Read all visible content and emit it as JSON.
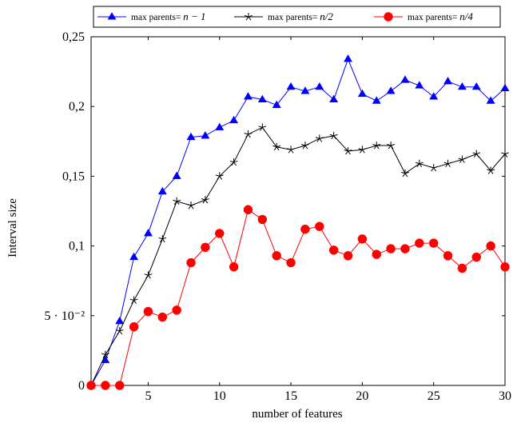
{
  "chart_data": {
    "type": "line",
    "xlabel": "number of features",
    "ylabel": "Interval size",
    "xlim": [
      1,
      30
    ],
    "ylim": [
      0,
      0.25
    ],
    "x_ticks": [
      5,
      10,
      15,
      20,
      25,
      30
    ],
    "x_tick_labels": [
      "5",
      "10",
      "15",
      "20",
      "25",
      "30"
    ],
    "y_ticks": [
      0,
      0.05,
      0.1,
      0.15,
      0.2,
      0.25
    ],
    "y_tick_labels": [
      "0",
      "5 · 10⁻²",
      "0,1",
      "0,15",
      "0,2",
      "0,25"
    ],
    "grid": false,
    "legend_position": "top-above",
    "x": [
      1,
      2,
      3,
      4,
      5,
      6,
      7,
      8,
      9,
      10,
      11,
      12,
      13,
      14,
      15,
      16,
      17,
      18,
      19,
      20,
      21,
      22,
      23,
      24,
      25,
      26,
      27,
      28,
      29,
      30
    ],
    "series": [
      {
        "name_prefix": "max parents= ",
        "name_math": "n − 1",
        "color": "#0000ff",
        "marker": "triangle",
        "values": [
          0,
          0.018,
          0.046,
          0.092,
          0.109,
          0.139,
          0.15,
          0.178,
          0.179,
          0.185,
          0.19,
          0.207,
          0.205,
          0.201,
          0.214,
          0.211,
          0.214,
          0.205,
          0.234,
          0.209,
          0.204,
          0.211,
          0.219,
          0.215,
          0.207,
          0.218,
          0.214,
          0.214,
          0.204,
          0.213
        ]
      },
      {
        "name_prefix": "max parents= ",
        "name_math": "n/2",
        "color": "#000000",
        "marker": "star",
        "values": [
          0,
          0.022,
          0.039,
          0.061,
          0.079,
          0.105,
          0.132,
          0.129,
          0.133,
          0.15,
          0.16,
          0.18,
          0.185,
          0.171,
          0.169,
          0.172,
          0.177,
          0.179,
          0.168,
          0.169,
          0.172,
          0.172,
          0.152,
          0.159,
          0.156,
          0.159,
          0.162,
          0.166,
          0.154,
          0.166
        ]
      },
      {
        "name_prefix": "max parents= ",
        "name_math": "n/4",
        "color": "#ff0000",
        "marker": "circle",
        "values": [
          0,
          0,
          0,
          0.042,
          0.053,
          0.049,
          0.054,
          0.088,
          0.099,
          0.109,
          0.085,
          0.126,
          0.119,
          0.093,
          0.088,
          0.112,
          0.114,
          0.097,
          0.093,
          0.105,
          0.094,
          0.098,
          0.098,
          0.102,
          0.102,
          0.093,
          0.084,
          0.092,
          0.1,
          0.085
        ]
      }
    ]
  }
}
